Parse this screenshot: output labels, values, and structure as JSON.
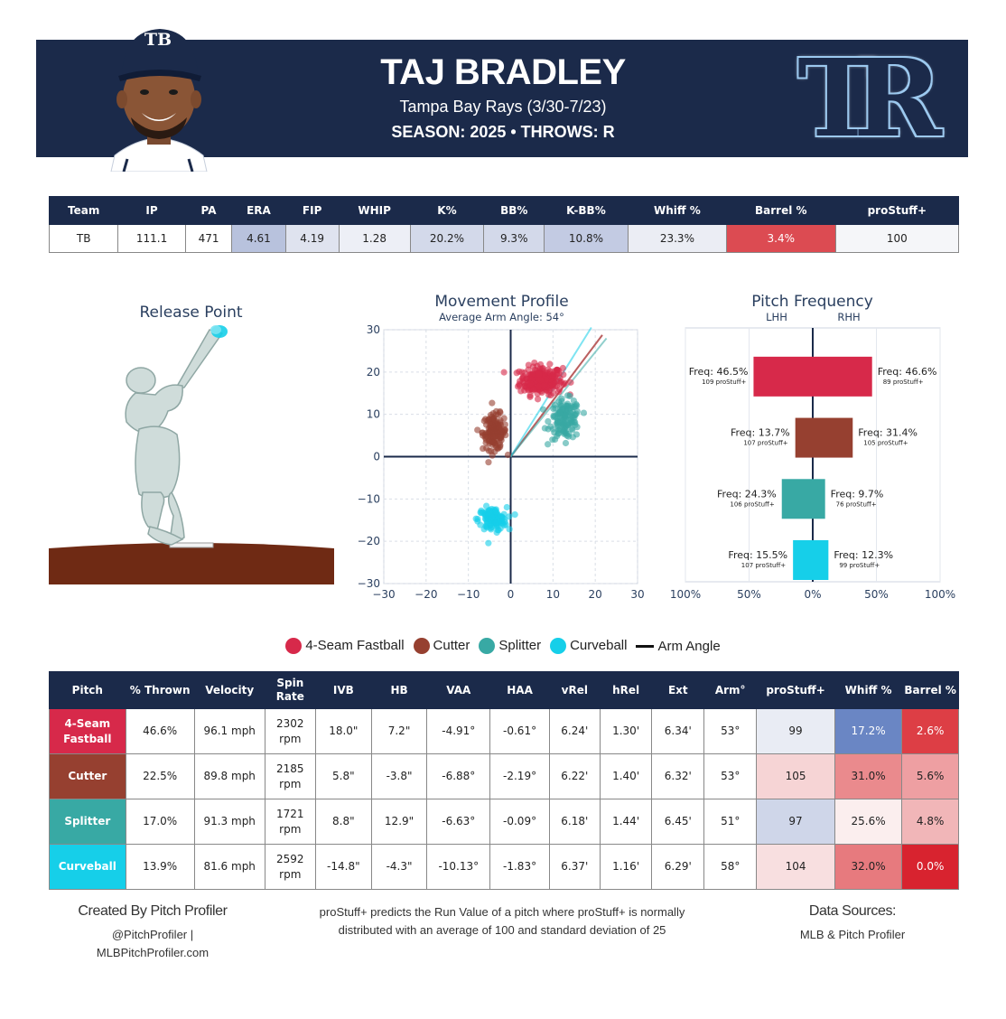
{
  "header": {
    "name": "TAJ BRADLEY",
    "team_line": "Tampa Bay Rays (3/30-7/23)",
    "season_line": "SEASON: 2025 • THROWS: R",
    "cap_letters": "TB",
    "logo_letters": "TR"
  },
  "stat_table": {
    "headers": [
      "Team",
      "IP",
      "PA",
      "ERA",
      "FIP",
      "WHIP",
      "K%",
      "BB%",
      "K-BB%",
      "Whiff %",
      "Barrel %",
      "proStuff+"
    ],
    "values": [
      "TB",
      "111.1",
      "471",
      "4.61",
      "4.19",
      "1.28",
      "20.2%",
      "9.3%",
      "10.8%",
      "23.3%",
      "3.4%",
      "100"
    ],
    "colors": [
      "#ffffff",
      "#ffffff",
      "#ffffff",
      "#b8c2dd",
      "#dfe3ef",
      "#edeff6",
      "#d3d9ea",
      "#d3d9ea",
      "#c3cbe3",
      "#ebedf4",
      "#dc4b52",
      "#f5f6f9"
    ]
  },
  "release_point": {
    "title": "Release Point"
  },
  "movement": {
    "title": "Movement Profile",
    "subtitle": "Average Arm Angle: 54°"
  },
  "frequency": {
    "title": "Pitch Frequency",
    "lhh_label": "LHH",
    "rhh_label": "RHH",
    "axis_labels": [
      "100%",
      "50%",
      "0%",
      "50%",
      "100%"
    ]
  },
  "legend": [
    {
      "label": "4-Seam Fastball",
      "color": "#d7294a"
    },
    {
      "label": "Cutter",
      "color": "#964030"
    },
    {
      "label": "Splitter",
      "color": "#38a9a4"
    },
    {
      "label": "Curveball",
      "color": "#16cfe9"
    },
    {
      "label": "Arm Angle",
      "color": "#111111"
    }
  ],
  "pitch_table": {
    "headers": [
      "Pitch",
      "% Thrown",
      "Velocity",
      "Spin Rate",
      "IVB",
      "HB",
      "VAA",
      "HAA",
      "vRel",
      "hRel",
      "Ext",
      "Arm°",
      "proStuff+",
      "Whiff %",
      "Barrel %"
    ],
    "rows": [
      {
        "pitch": "4-Seam Fastball",
        "color": "#d7294a",
        "thrown": "46.6%",
        "velocity": "96.1 mph",
        "spin": "2302",
        "spin_unit": "rpm",
        "ivb": "18.0\"",
        "hb": "7.2\"",
        "vaa": "-4.91°",
        "haa": "-0.61°",
        "vrel": "6.24'",
        "hrel": "1.30'",
        "ext": "6.34'",
        "arm": "53°",
        "prostuff": "99",
        "whiff": "17.2%",
        "barrel": "2.6%",
        "prostuff_bg": "#e9ecf4",
        "whiff_bg": "#6a86c4",
        "whiff_fg": "#ffffff",
        "barrel_bg": "#dd3e45",
        "barrel_fg": "#ffffff"
      },
      {
        "pitch": "Cutter",
        "color": "#964030",
        "thrown": "22.5%",
        "velocity": "89.8 mph",
        "spin": "2185",
        "spin_unit": "rpm",
        "ivb": "5.8\"",
        "hb": "-3.8\"",
        "vaa": "-6.88°",
        "haa": "-2.19°",
        "vrel": "6.22'",
        "hrel": "1.40'",
        "ext": "6.32'",
        "arm": "53°",
        "prostuff": "105",
        "whiff": "31.0%",
        "barrel": "5.6%",
        "prostuff_bg": "#f6d4d5",
        "whiff_bg": "#ea8a8d",
        "whiff_fg": "#222222",
        "barrel_bg": "#ee9fa2",
        "barrel_fg": "#222222"
      },
      {
        "pitch": "Splitter",
        "color": "#38a9a4",
        "thrown": "17.0%",
        "velocity": "91.3 mph",
        "spin": "1721",
        "spin_unit": "rpm",
        "ivb": "8.8\"",
        "hb": "12.9\"",
        "vaa": "-6.63°",
        "haa": "-0.09°",
        "vrel": "6.18'",
        "hrel": "1.44'",
        "ext": "6.45'",
        "arm": "51°",
        "prostuff": "97",
        "whiff": "25.6%",
        "barrel": "4.8%",
        "prostuff_bg": "#cfd6e9",
        "whiff_bg": "#fbeeee",
        "whiff_fg": "#222222",
        "barrel_bg": "#f1b6b8",
        "barrel_fg": "#222222"
      },
      {
        "pitch": "Curveball",
        "color": "#16cfe9",
        "thrown": "13.9%",
        "velocity": "81.6 mph",
        "spin": "2592",
        "spin_unit": "rpm",
        "ivb": "-14.8\"",
        "hb": "-4.3\"",
        "vaa": "-10.13°",
        "haa": "-1.83°",
        "vrel": "6.37'",
        "hrel": "1.16'",
        "ext": "6.29'",
        "arm": "58°",
        "prostuff": "104",
        "whiff": "32.0%",
        "barrel": "0.0%",
        "prostuff_bg": "#f8dfe0",
        "whiff_bg": "#e77a7e",
        "whiff_fg": "#222222",
        "barrel_bg": "#d8232f",
        "barrel_fg": "#ffffff"
      }
    ]
  },
  "footer": {
    "created_by": "Created By Pitch Profiler",
    "handle": "@PitchProfiler |",
    "site": "MLBPitchProfiler.com",
    "note_line1": "proStuff+ predicts the Run Value of a pitch where proStuff+ is normally",
    "note_line2": "distributed with an average of 100 and standard deviation of 25",
    "sources_title": "Data Sources:",
    "sources": "MLB & Pitch Profiler"
  },
  "chart_data": [
    {
      "type": "scatter",
      "title": "Movement Profile",
      "subtitle": "Average Arm Angle: 54°",
      "xlim": [
        -30,
        30
      ],
      "ylim": [
        -30,
        30
      ],
      "xticks": [
        -30,
        -20,
        -10,
        0,
        10,
        20,
        30
      ],
      "yticks": [
        -30,
        -20,
        -10,
        0,
        10,
        20,
        30
      ],
      "grid": true,
      "series": [
        {
          "name": "4-Seam Fastball",
          "color": "#d7294a",
          "center": [
            7.2,
            18.0
          ],
          "spread": [
            3.6,
            2.4
          ],
          "n": 240
        },
        {
          "name": "Cutter",
          "color": "#964030",
          "center": [
            -3.8,
            5.8
          ],
          "spread": [
            2.0,
            3.0
          ],
          "n": 150
        },
        {
          "name": "Splitter",
          "color": "#38a9a4",
          "center": [
            12.9,
            8.8
          ],
          "spread": [
            2.6,
            3.3
          ],
          "n": 130
        },
        {
          "name": "Curveball",
          "color": "#16cfe9",
          "center": [
            -4.3,
            -14.8
          ],
          "spread": [
            2.4,
            2.0
          ],
          "n": 120
        }
      ],
      "arm_angle_lines": [
        {
          "color": "#d7294a",
          "angle_deg": 53
        },
        {
          "color": "#964030",
          "angle_deg": 53
        },
        {
          "color": "#38a9a4",
          "angle_deg": 51
        },
        {
          "color": "#16cfe9",
          "angle_deg": 58
        }
      ]
    },
    {
      "type": "bar",
      "orientation": "horizontal-diverging",
      "title": "Pitch Frequency",
      "xlim": [
        -100,
        100
      ],
      "categories": [
        "4-Seam Fastball",
        "Cutter",
        "Splitter",
        "Curveball"
      ],
      "series": [
        {
          "name": "LHH",
          "values": [
            46.5,
            13.7,
            24.3,
            15.5
          ],
          "labels": [
            "Freq: 46.5%",
            "Freq: 13.7%",
            "Freq: 24.3%",
            "Freq: 15.5%"
          ],
          "prostuff": [
            "109 proStuff+",
            "107 proStuff+",
            "106 proStuff+",
            "107 proStuff+"
          ]
        },
        {
          "name": "RHH",
          "values": [
            46.6,
            31.4,
            9.7,
            12.3
          ],
          "labels": [
            "Freq: 46.6%",
            "Freq: 31.4%",
            "Freq: 9.7%",
            "Freq: 12.3%"
          ],
          "prostuff": [
            "89 proStuff+",
            "105 proStuff+",
            "76 proStuff+",
            "99 proStuff+"
          ]
        }
      ],
      "colors": [
        "#d7294a",
        "#964030",
        "#38a9a4",
        "#16cfe9"
      ]
    }
  ]
}
